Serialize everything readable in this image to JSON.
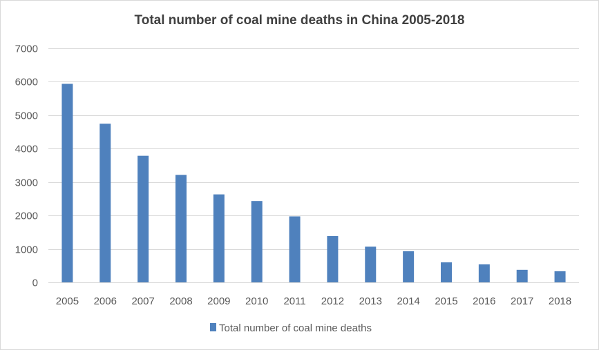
{
  "chart_data": {
    "type": "bar",
    "title": "Total number of coal mine deaths in China 2005-2018",
    "xlabel": "",
    "ylabel": "",
    "categories": [
      "2005",
      "2006",
      "2007",
      "2008",
      "2009",
      "2010",
      "2011",
      "2012",
      "2013",
      "2014",
      "2015",
      "2016",
      "2017",
      "2018"
    ],
    "series": [
      {
        "name": "Total number of coal mine deaths",
        "values": [
          5938,
          4746,
          3786,
          3215,
          2631,
          2433,
          1973,
          1384,
          1067,
          931,
          598,
          538,
          375,
          333
        ],
        "color": "#4f81bd"
      }
    ],
    "yticks": [
      "0",
      "1000",
      "2000",
      "3000",
      "4000",
      "5000",
      "6000",
      "7000"
    ],
    "ylim": [
      0,
      7000
    ],
    "grid": true,
    "legend_position": "bottom",
    "colors": {
      "bar": "#4f81bd",
      "gridline": "#d9d9d9",
      "text": "#595959",
      "title": "#404040"
    }
  }
}
